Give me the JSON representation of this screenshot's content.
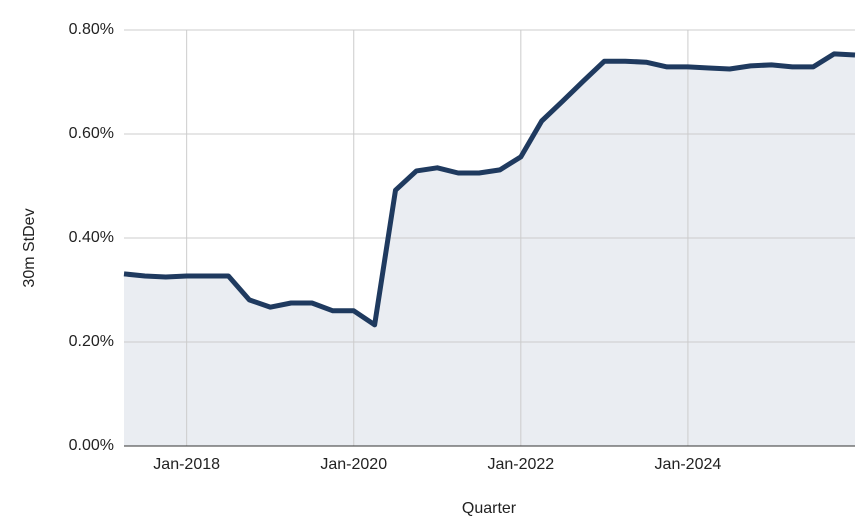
{
  "chart_data": {
    "type": "area",
    "x_label": "Quarter",
    "y_label": "30m StDev",
    "x": [
      "2017-04",
      "2017-07",
      "2017-10",
      "2018-01",
      "2018-04",
      "2018-07",
      "2018-10",
      "2019-01",
      "2019-04",
      "2019-07",
      "2019-10",
      "2020-01",
      "2020-04",
      "2020-07",
      "2020-10",
      "2021-01",
      "2021-04",
      "2021-07",
      "2021-10",
      "2022-01",
      "2022-04",
      "2022-07",
      "2022-10",
      "2023-01",
      "2023-04",
      "2023-07",
      "2023-10",
      "2024-01",
      "2024-04",
      "2024-07",
      "2024-10",
      "2025-01",
      "2025-04",
      "2025-07",
      "2025-10",
      "2026-01"
    ],
    "series": [
      {
        "color": "#1f3a5f",
        "fill": "#e8ebf1",
        "values": [
          0.331,
          0.327,
          0.325,
          0.327,
          0.327,
          0.327,
          0.281,
          0.267,
          0.275,
          0.275,
          0.26,
          0.26,
          0.233,
          0.492,
          0.529,
          0.535,
          0.525,
          0.525,
          0.531,
          0.556,
          0.625,
          0.663,
          0.702,
          0.74,
          0.74,
          0.738,
          0.729,
          0.729,
          0.727,
          0.725,
          0.731,
          0.733,
          0.729,
          0.729,
          0.754,
          0.752
        ]
      }
    ],
    "xlim": [
      "2017-04",
      "2026-01"
    ],
    "xticks": [
      {
        "value": "2018-01",
        "label": "Jan-2018"
      },
      {
        "value": "2020-01",
        "label": "Jan-2020"
      },
      {
        "value": "2022-01",
        "label": "Jan-2022"
      },
      {
        "value": "2024-01",
        "label": "Jan-2024"
      }
    ],
    "ylim": [
      0,
      0.8
    ],
    "yticks": [
      {
        "value": 0,
        "label": "0.00%"
      },
      {
        "value": 0.2,
        "label": "0.20%"
      },
      {
        "value": 0.4,
        "label": "0.40%"
      },
      {
        "value": 0.6,
        "label": "0.60%"
      },
      {
        "value": 0.8,
        "label": "0.80%"
      }
    ],
    "grid": true
  }
}
